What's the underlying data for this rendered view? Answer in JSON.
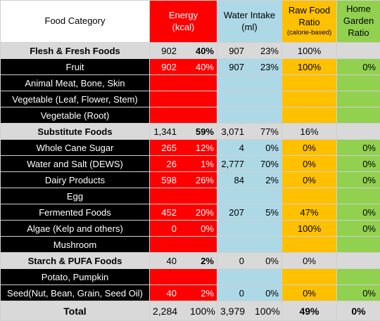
{
  "header": {
    "food_category": "Food Category",
    "energy_line1": "Energy",
    "energy_line2": "(kcal)",
    "water_line1": "Water Intake",
    "water_line2": "(ml)",
    "raw_line1": "Raw Food",
    "raw_line2": "Ratio",
    "raw_line3": "(calorie-based)",
    "home_line1": "Home",
    "home_line2": "Garden",
    "home_line3": "Ratio"
  },
  "rows": [
    {
      "type": "group",
      "label": "Flesh & Fresh Foods",
      "energy": "902",
      "energy_pct": "40%",
      "water": "907",
      "water_pct": "23%",
      "raw": "100%",
      "home": ""
    },
    {
      "type": "item",
      "label": "Fruit",
      "energy": "902",
      "energy_pct": "40%",
      "water": "907",
      "water_pct": "23%",
      "raw": "100%",
      "home": "0%"
    },
    {
      "type": "item",
      "label": "Animal Meat, Bone, Skin",
      "energy": "",
      "energy_pct": "",
      "water": "",
      "water_pct": "",
      "raw": "",
      "home": ""
    },
    {
      "type": "item",
      "label": "Vegetable (Leaf, Flower, Stem)",
      "energy": "",
      "energy_pct": "",
      "water": "",
      "water_pct": "",
      "raw": "",
      "home": ""
    },
    {
      "type": "item",
      "label": "Vegetable (Root)",
      "energy": "",
      "energy_pct": "",
      "water": "",
      "water_pct": "",
      "raw": "",
      "home": ""
    },
    {
      "type": "group",
      "label": "Substitute Foods",
      "energy": "1,341",
      "energy_pct": "59%",
      "water": "3,071",
      "water_pct": "77%",
      "raw": "16%",
      "home": ""
    },
    {
      "type": "item",
      "label": "Whole Cane Sugar",
      "energy": "265",
      "energy_pct": "12%",
      "water": "4",
      "water_pct": "0%",
      "raw": "0%",
      "home": "0%"
    },
    {
      "type": "item",
      "label": "Water and Salt (DEWS)",
      "energy": "26",
      "energy_pct": "1%",
      "water": "2,777",
      "water_pct": "70%",
      "raw": "0%",
      "home": "0%"
    },
    {
      "type": "item",
      "label": "Dairy Products",
      "energy": "598",
      "energy_pct": "26%",
      "water": "84",
      "water_pct": "2%",
      "raw": "0%",
      "home": "0%"
    },
    {
      "type": "item",
      "label": "Egg",
      "energy": "",
      "energy_pct": "",
      "water": "",
      "water_pct": "",
      "raw": "",
      "home": ""
    },
    {
      "type": "item",
      "label": "Fermented Foods",
      "energy": "452",
      "energy_pct": "20%",
      "water": "207",
      "water_pct": "5%",
      "raw": "47%",
      "home": "0%"
    },
    {
      "type": "item",
      "label": "Algae (Kelp and others)",
      "energy": "0",
      "energy_pct": "0%",
      "water": "",
      "water_pct": "",
      "raw": "100%",
      "home": "0%"
    },
    {
      "type": "item",
      "label": "Mushroom",
      "energy": "",
      "energy_pct": "",
      "water": "",
      "water_pct": "",
      "raw": "",
      "home": ""
    },
    {
      "type": "group",
      "label": "Starch & PUFA Foods",
      "energy": "40",
      "energy_pct": "2%",
      "water": "0",
      "water_pct": "0%",
      "raw": "0%",
      "home": ""
    },
    {
      "type": "item",
      "label": "Potato, Pumpkin",
      "energy": "",
      "energy_pct": "",
      "water": "",
      "water_pct": "",
      "raw": "",
      "home": ""
    },
    {
      "type": "item",
      "label": "Seed(Nut, Bean, Grain, Seed Oil)",
      "energy": "40",
      "energy_pct": "2%",
      "water": "0",
      "water_pct": "0%",
      "raw": "0%",
      "home": "0%"
    },
    {
      "type": "total",
      "label": "Total",
      "energy": "2,284",
      "energy_pct": "100%",
      "water": "3,979",
      "water_pct": "100%",
      "raw": "49%",
      "home": "0%"
    }
  ],
  "colors": {
    "energy": "#ff0000",
    "water": "#add8e6",
    "raw": "#ffc000",
    "home": "#92d050",
    "group_bg": "#d9d9d9",
    "item_label_bg": "#000000"
  }
}
